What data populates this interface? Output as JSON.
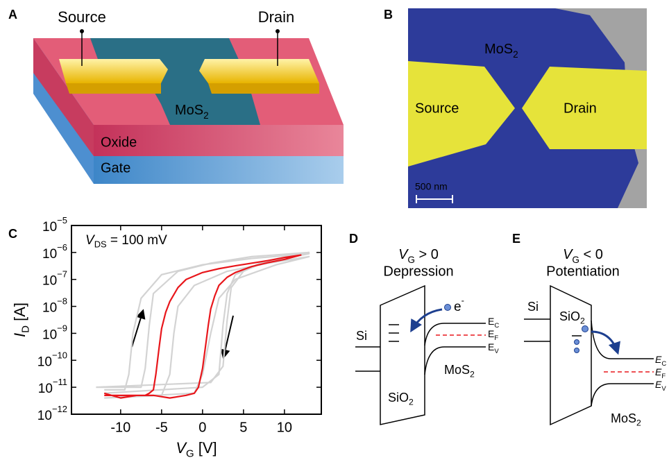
{
  "panel_a": {
    "letter": "A",
    "source": "Source",
    "drain": "Drain",
    "mos2": [
      {
        "text": "MoS"
      },
      {
        "text": "2",
        "style": "sub"
      }
    ],
    "oxide": "Oxide",
    "gate": "Gate"
  },
  "panel_b": {
    "letter": "B",
    "mos2": [
      {
        "text": "MoS"
      },
      {
        "text": "2",
        "style": "sub"
      }
    ],
    "source": "Source",
    "drain": "Drain",
    "scale_bar": "500 nm"
  },
  "chart_data": {
    "type": "line",
    "panel_label": "C",
    "log_y": true,
    "xlabel": [
      {
        "text": "V",
        "style": "italic"
      },
      {
        "text": "G",
        "style": "sub"
      },
      {
        "text": " [V]"
      }
    ],
    "ylabel": [
      {
        "text": "I",
        "style": "italic"
      },
      {
        "text": "D",
        "style": "sub"
      },
      {
        "text": " [A]"
      }
    ],
    "annotation": [
      {
        "text": "V",
        "style": "italic"
      },
      {
        "text": "DS",
        "style": "sub"
      },
      {
        "text": " = 100 mV"
      }
    ],
    "xlim": [
      -16,
      14.5
    ],
    "xticks": [
      -10,
      -5,
      0,
      5,
      10
    ],
    "ylim": [
      1e-12,
      1e-05
    ],
    "yticks": [
      {
        "value": 1e-12,
        "base": "10",
        "exponent": "−12"
      },
      {
        "value": 1e-11,
        "base": "10",
        "exponent": "−11"
      },
      {
        "value": 1e-10,
        "base": "10",
        "exponent": "−10"
      },
      {
        "value": 1e-09,
        "base": "10",
        "exponent": "−9"
      },
      {
        "value": 1e-08,
        "base": "10",
        "exponent": "−8"
      },
      {
        "value": 1e-07,
        "base": "10",
        "exponent": "−7"
      },
      {
        "value": 1e-06,
        "base": "10",
        "exponent": "−6"
      },
      {
        "value": 1e-05,
        "base": "10",
        "exponent": "−5"
      }
    ],
    "series": [
      {
        "color": "#d3d3d3",
        "x": [
          -12,
          -9.5,
          -9,
          -8.5,
          -7.5,
          -5,
          0,
          6,
          13,
          13,
          7,
          4,
          3,
          2.5,
          2,
          0,
          -12
        ],
        "values": [
          8e-12,
          8e-12,
          3e-11,
          1e-09,
          2e-08,
          1.5e-07,
          3.5e-07,
          6e-07,
          9e-07,
          9e-07,
          4e-07,
          1.5e-07,
          3e-08,
          2e-09,
          3e-11,
          1e-11,
          6e-12
        ]
      },
      {
        "color": "#d3d3d3",
        "x": [
          -12,
          -5,
          -4,
          -3.5,
          -3,
          -1,
          3,
          8,
          13,
          13,
          9,
          4,
          2,
          1,
          0,
          -1,
          -12
        ],
        "values": [
          4e-12,
          5e-12,
          3e-11,
          1e-09,
          1e-08,
          6e-08,
          2e-07,
          4e-07,
          7e-07,
          7e-07,
          3.5e-07,
          1e-07,
          2e-08,
          1e-09,
          3e-11,
          6e-12,
          4e-12
        ]
      },
      {
        "color": "#d3d3d3",
        "x": [
          -13,
          -7.5,
          -7,
          -6.5,
          -6,
          -3,
          1,
          6,
          13,
          13,
          8,
          5,
          3.5,
          3,
          2.5,
          1,
          -13
        ],
        "values": [
          1e-11,
          1e-11,
          5e-11,
          2e-09,
          3e-08,
          2e-07,
          4e-07,
          7e-07,
          1e-06,
          1e-06,
          5e-07,
          2e-07,
          5e-08,
          3e-09,
          6e-11,
          1.5e-11,
          1e-11
        ]
      },
      {
        "color": "#e8161b",
        "x": [
          -12,
          -10,
          -8,
          -7,
          -6.5,
          -6,
          -5.7,
          -5.3,
          -5,
          -4.5,
          -4,
          -3,
          -2,
          0,
          2,
          4,
          6,
          8,
          10,
          12,
          12,
          10,
          8,
          6,
          4,
          3,
          2,
          1.5,
          1,
          0.7,
          0.4,
          0,
          -0.5,
          -1,
          -2,
          -4,
          -6,
          -8,
          -10,
          -12
        ],
        "values": [
          5e-12,
          5e-12,
          5e-12,
          5e-12,
          6e-12,
          8e-12,
          3e-11,
          3e-10,
          1.5e-09,
          6e-09,
          1.5e-08,
          5e-08,
          1e-07,
          1.8e-07,
          2.5e-07,
          3.2e-07,
          4e-07,
          5e-07,
          6.5e-07,
          8e-07,
          8e-07,
          5.5e-07,
          4.2e-07,
          3e-07,
          1.8e-07,
          1.2e-07,
          6e-08,
          2.5e-08,
          8e-09,
          2e-09,
          4e-10,
          5e-11,
          1e-11,
          6e-12,
          5e-12,
          4e-12,
          5e-12,
          5e-12,
          4e-12,
          6e-12
        ]
      }
    ]
  },
  "panel_d": {
    "letter": "D",
    "condition": [
      {
        "text": "V",
        "style": "italic"
      },
      {
        "text": "G",
        "style": "sub"
      },
      {
        "text": " > 0"
      }
    ],
    "mode": "Depression",
    "si": "Si",
    "sio2": [
      {
        "text": "SiO"
      },
      {
        "text": "2",
        "style": "sub"
      }
    ],
    "mos2": [
      {
        "text": "MoS"
      },
      {
        "text": "2",
        "style": "sub"
      }
    ],
    "ec": [
      {
        "text": "E"
      },
      {
        "text": "C",
        "style": "sub"
      }
    ],
    "ef": [
      {
        "text": "E"
      },
      {
        "text": "F",
        "style": "sub"
      }
    ],
    "ev": [
      {
        "text": "E"
      },
      {
        "text": "V",
        "style": "sub"
      }
    ],
    "electron": [
      {
        "text": "e"
      },
      {
        "text": "-",
        "style": "sup"
      }
    ]
  },
  "panel_e": {
    "letter": "E",
    "condition": [
      {
        "text": "V",
        "style": "italic"
      },
      {
        "text": "G",
        "style": "sub"
      },
      {
        "text": " < 0"
      }
    ],
    "mode": "Potentiation",
    "si": "Si",
    "sio2": [
      {
        "text": "SiO"
      },
      {
        "text": "2",
        "style": "sub"
      }
    ],
    "mos2": [
      {
        "text": "MoS"
      },
      {
        "text": "2",
        "style": "sub"
      }
    ],
    "ec": [
      {
        "text": "E",
        "style": "italic"
      },
      {
        "text": "C",
        "style": "sub"
      }
    ],
    "ef": [
      {
        "text": "E",
        "style": "italic"
      },
      {
        "text": "F",
        "style": "sub"
      }
    ],
    "ev": [
      {
        "text": "E",
        "style": "italic"
      },
      {
        "text": "V",
        "style": "sub"
      }
    ]
  }
}
